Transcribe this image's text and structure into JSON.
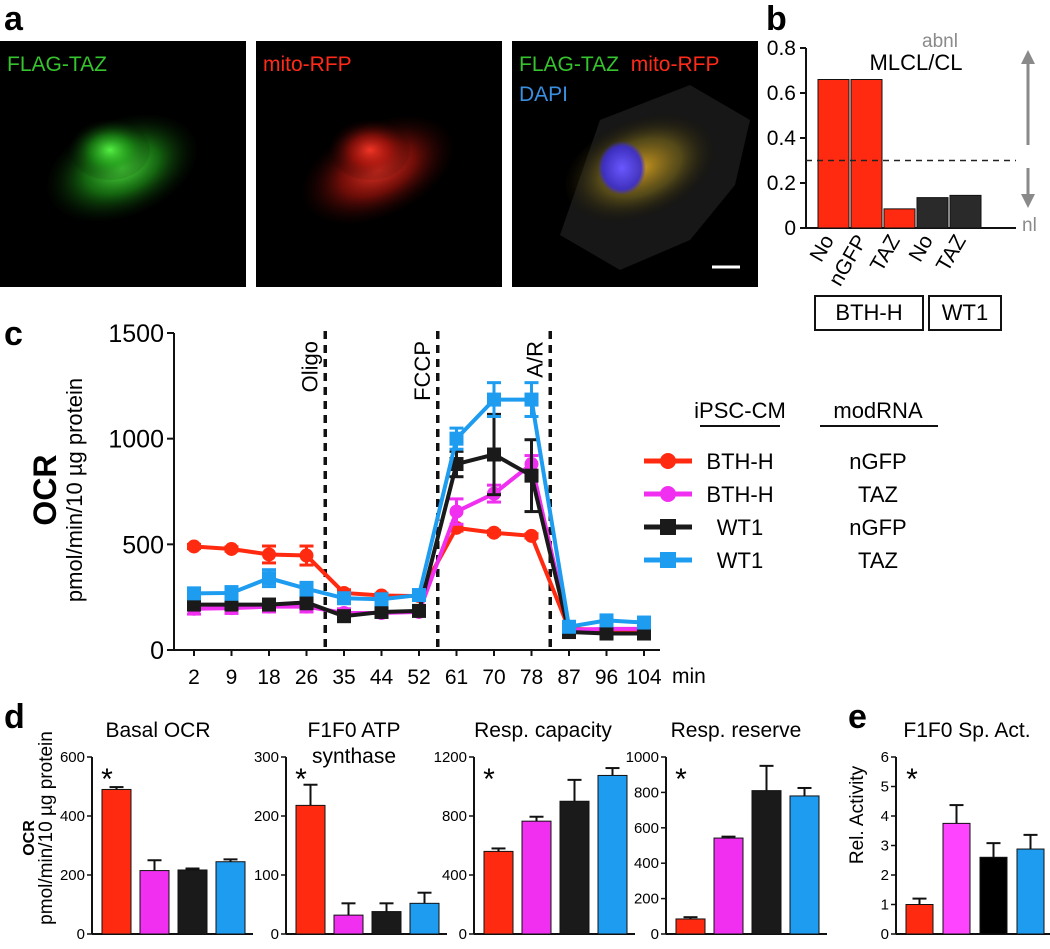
{
  "panels": {
    "a": {
      "label": "a",
      "images": [
        {
          "caption": "FLAG-TAZ",
          "caption_color": "#35c42e"
        },
        {
          "caption": "mito-RFP",
          "caption_color": "#ff2a1a"
        },
        {
          "caption_parts": [
            "FLAG-TAZ",
            "mito-RFP",
            "DAPI"
          ],
          "caption_colors": [
            "#35c42e",
            "#ff2a1a",
            "#3a8fe0"
          ]
        }
      ]
    },
    "b": {
      "label": "b",
      "group_labels": [
        "BTH-H",
        "WT1"
      ],
      "arrow_up_label": "abnl",
      "arrow_down_label": "nl"
    },
    "c": {
      "label": "c",
      "xunit": "min",
      "ylabel_bold": "OCR",
      "ylabel_unit": "pmol/min/10 µg protein",
      "legend_header_left": "iPSC-CM",
      "legend_header_right": "modRNA"
    },
    "d": {
      "label": "d",
      "ylabel_bold": "OCR",
      "ylabel_unit": "pmol/min/10 µg protein"
    },
    "e": {
      "label": "e",
      "ylabel": "Rel. Activity"
    }
  },
  "colors": {
    "red": "#ff2a0f",
    "magenta": "#f02ff0",
    "black": "#1a1a1a",
    "blue": "#1d9cf0",
    "dashed": "#222222",
    "arrow": "#8a8a8a"
  },
  "chart_data": [
    {
      "id": "b",
      "type": "bar",
      "title": "MLCL/CL",
      "categories": [
        "No",
        "nGFP",
        "TAZ",
        "No",
        "TAZ"
      ],
      "values": [
        0.66,
        0.66,
        0.085,
        0.135,
        0.145
      ],
      "bar_colors": [
        "#ff2a0f",
        "#ff2a0f",
        "#ff2a0f",
        "#2a2a2a",
        "#2a2a2a"
      ],
      "ylim": [
        0,
        0.8
      ],
      "yticks": [
        0,
        0.2,
        0.4,
        0.6,
        0.8
      ],
      "threshold": 0.3
    },
    {
      "id": "c",
      "type": "line",
      "x": [
        "2",
        "9",
        "18",
        "26",
        "35",
        "44",
        "52",
        "61",
        "70",
        "78",
        "87",
        "96",
        "104"
      ],
      "ylim": [
        0,
        1500
      ],
      "yticks": [
        0,
        500,
        1000,
        1500
      ],
      "events": [
        {
          "label": "Oligo",
          "after_index": 3
        },
        {
          "label": "FCCP",
          "after_index": 6
        },
        {
          "label": "A/R",
          "after_index": 9
        }
      ],
      "series": [
        {
          "name": "BTH-H nGFP",
          "legend_left": "BTH-H",
          "legend_right": "nGFP",
          "marker": "circle",
          "color": "#ff2a0f",
          "values": [
            490,
            478,
            452,
            447,
            270,
            258,
            255,
            578,
            555,
            540,
            100,
            96,
            96
          ],
          "errors": [
            10,
            10,
            40,
            45,
            15,
            10,
            10,
            15,
            10,
            10,
            8,
            8,
            8
          ]
        },
        {
          "name": "BTH-H TAZ",
          "legend_left": "BTH-H",
          "legend_right": "TAZ",
          "marker": "circle",
          "color": "#f02ff0",
          "values": [
            195,
            198,
            205,
            205,
            175,
            175,
            180,
            655,
            740,
            880,
            95,
            100,
            100
          ],
          "errors": [
            25,
            25,
            25,
            25,
            20,
            15,
            15,
            60,
            40,
            40,
            10,
            10,
            10
          ]
        },
        {
          "name": "WT1 nGFP",
          "legend_left": "WT1",
          "legend_right": "nGFP",
          "marker": "square",
          "color": "#1a1a1a",
          "values": [
            215,
            215,
            215,
            225,
            160,
            180,
            185,
            880,
            925,
            825,
            85,
            78,
            78
          ],
          "errors": [
            25,
            25,
            25,
            30,
            20,
            20,
            20,
            60,
            190,
            170,
            15,
            10,
            10
          ]
        },
        {
          "name": "WT1 TAZ",
          "legend_left": "WT1",
          "legend_right": "TAZ",
          "marker": "square",
          "color": "#1d9cf0",
          "values": [
            268,
            270,
            340,
            290,
            245,
            240,
            260,
            1000,
            1185,
            1185,
            110,
            140,
            130
          ],
          "errors": [
            20,
            30,
            40,
            30,
            20,
            15,
            15,
            50,
            80,
            80,
            10,
            10,
            10
          ]
        }
      ]
    },
    {
      "id": "d1",
      "type": "bar",
      "title": "Basal OCR",
      "values": [
        490,
        215,
        217,
        245
      ],
      "errors": [
        8,
        35,
        5,
        8
      ],
      "ylim": [
        0,
        600
      ],
      "yticks": [
        0,
        200,
        400,
        600
      ],
      "significance": "*"
    },
    {
      "id": "d2",
      "type": "bar",
      "title_lines": [
        "F1F0 ATP",
        "synthase"
      ],
      "values": [
        218,
        32,
        38,
        52
      ],
      "errors": [
        35,
        20,
        14,
        18
      ],
      "ylim": [
        0,
        300
      ],
      "yticks": [
        0,
        100,
        200,
        300
      ],
      "significance": "*"
    },
    {
      "id": "d3",
      "type": "bar",
      "title": "Resp. capacity",
      "values": [
        560,
        765,
        900,
        1075
      ],
      "errors": [
        20,
        30,
        145,
        50
      ],
      "ylim": [
        0,
        1200
      ],
      "yticks": [
        0,
        400,
        800,
        1200
      ],
      "significance": "*"
    },
    {
      "id": "d4",
      "type": "bar",
      "title": "Resp. reserve",
      "values": [
        85,
        542,
        810,
        780
      ],
      "errors": [
        10,
        8,
        140,
        45
      ],
      "ylim": [
        0,
        1000
      ],
      "yticks": [
        0,
        200,
        400,
        600,
        800,
        1000
      ],
      "significance": "*"
    },
    {
      "id": "e1",
      "type": "bar",
      "title": "F1F0 Sp. Act.",
      "values": [
        1.0,
        3.75,
        2.6,
        2.88
      ],
      "errors": [
        0.2,
        0.62,
        0.48,
        0.48
      ],
      "ylim": [
        0,
        6
      ],
      "yticks": [
        0,
        1,
        2,
        3,
        4,
        5,
        6
      ],
      "significance": "*",
      "bar_colors": [
        "#ff2a0f",
        "#ff44ff",
        "#000000",
        "#1d9cf0"
      ]
    }
  ]
}
